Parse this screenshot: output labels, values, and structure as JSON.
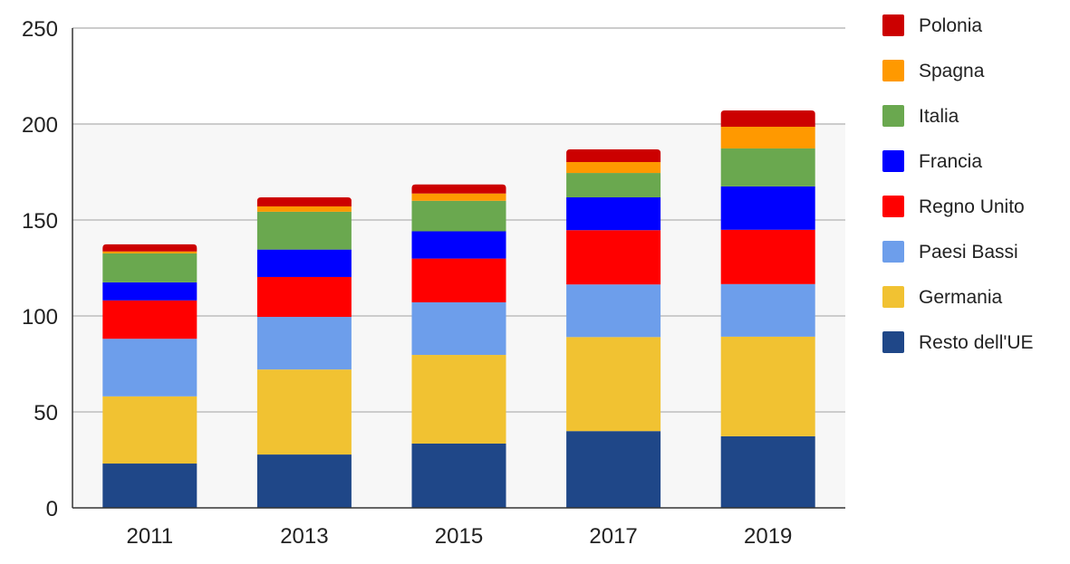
{
  "chart_data": {
    "type": "bar",
    "stacked": true,
    "title": "",
    "xlabel": "",
    "ylabel": "",
    "ylim": [
      0,
      250
    ],
    "yticks": [
      0,
      50,
      100,
      150,
      200,
      250
    ],
    "grid": true,
    "legend_position": "right",
    "categories": [
      "2011",
      "2013",
      "2015",
      "2017",
      "2019"
    ],
    "series": [
      {
        "name": "Resto dell'UE",
        "color": "#1f4788",
        "values": [
          23.1,
          27.8,
          33.5,
          40.0,
          37.3
        ]
      },
      {
        "name": "Germania",
        "color": "#f1c232",
        "values": [
          35.0,
          44.3,
          46.2,
          49.0,
          51.9
        ]
      },
      {
        "name": "Paesi Bassi",
        "color": "#6d9eeb",
        "values": [
          30.0,
          27.4,
          27.4,
          27.4,
          27.4
        ]
      },
      {
        "name": "Regno Unito",
        "color": "#ff0000",
        "values": [
          20.0,
          20.8,
          22.8,
          28.3,
          28.3
        ]
      },
      {
        "name": "Francia",
        "color": "#0000ff",
        "values": [
          9.4,
          14.3,
          14.2,
          17.1,
          22.6
        ]
      },
      {
        "name": "Italia",
        "color": "#6aa84f",
        "values": [
          15.1,
          19.7,
          15.9,
          12.7,
          19.8
        ]
      },
      {
        "name": "Spagna",
        "color": "#ff9900",
        "values": [
          1.0,
          2.8,
          3.8,
          5.7,
          11.3
        ]
      },
      {
        "name": "Polonia",
        "color": "#cc0000",
        "values": [
          3.7,
          4.7,
          4.7,
          6.6,
          8.5
        ]
      }
    ]
  }
}
